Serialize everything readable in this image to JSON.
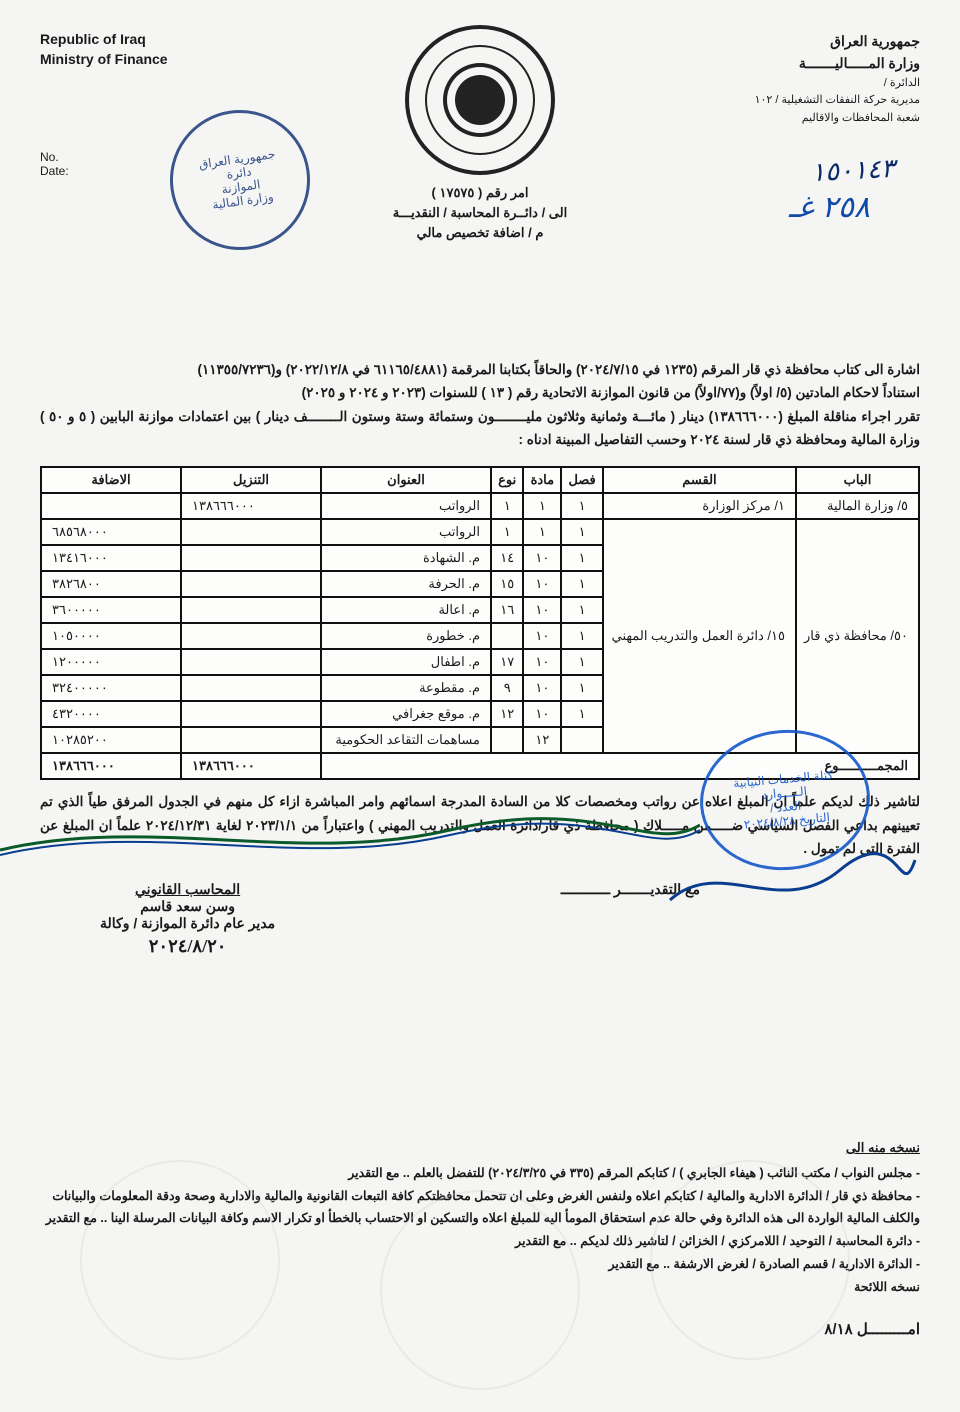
{
  "header": {
    "en_line1": "Republic of Iraq",
    "en_line2": "Ministry of Finance",
    "ar_line1": "جمهورية العراق",
    "ar_line2": "وزارة المـــــاليـــــــة",
    "ar_small1": "الدائرة /",
    "ar_small2": "مديرية حركة النفقات التشغيلية / ١٠٢",
    "ar_small3": "شعبة المحافظات والاقاليم",
    "no_label": "No.",
    "date_label": "Date:",
    "order_no": "امر رقم ( ١٧٥٧٥ )",
    "to": "الى / دائــرة المحاسبة / النقديـــة",
    "subject": "م / اضافة تخصيص مالي",
    "hand_num": "١٥٠١٤٣",
    "hand_sig": "٢٥٨ غـ"
  },
  "stamp1_text": "جمهورية العراق\nدائرة\nالموازنة\nوزارة المالية",
  "stamp2": {
    "l1": "كتلة الخدمات النيابية",
    "l2": "الـــــوارد",
    "l3": "العدد /",
    "l4": "التاريخ  ٢٠٢٤/٨/٢٨"
  },
  "body": {
    "p1": "اشارة الى كتاب محافظة ذي قار المرقم (١٢٣٥ في ٢٠٢٤/٧/١٥) والحاقاً بكتابنا المرقمة (٦١١٦٥/٤٨٨١ في ٢٠٢٢/١٢/٨) و(١١٣٥٥/٧٢٣٦)",
    "p2": "استناداً لاحكام المادتين (٥/ اولاً) و(٧٧/اولاً) من قانون الموازنة الاتحادية رقم ( ١٣ ) للسنوات (٢٠٢٣ و ٢٠٢٤ و ٢٠٢٥)",
    "p3": "تقرر اجراء مناقلة المبلغ (١٣٨٦٦٦٠٠٠) دينار ( مائـــة وثمانية وثلاثون مليــــــــون وستمائة وستة وستون الــــــــف دينار ) بين اعتمادات موازنة البابين ( ٥ و ٥٠ )  وزارة المالية ومحافظة ذي قار لسنة ٢٠٢٤ وحسب التفاصيل المبينة ادناه :"
  },
  "table": {
    "headers": [
      "الباب",
      "القسم",
      "فصل",
      "مادة",
      "نوع",
      "العنوان",
      "التنزيل",
      "الاضافة"
    ],
    "rows": [
      {
        "bab": "٥/ وزارة المالية",
        "qism": "١/ مركز الوزارة",
        "fasl": "١",
        "mada": "١",
        "naw": "١",
        "unwan": "الرواتب",
        "tanzil": "١٣٨٦٦٦٠٠٠",
        "idafa": ""
      },
      {
        "bab": "٥٠/ محافظة ذي قار",
        "qism": "١٥/ دائرة العمل والتدريب المهني",
        "fasl": "١",
        "mada": "١",
        "naw": "١",
        "unwan": "الرواتب",
        "tanzil": "",
        "idafa": "٦٨٥٦٨٠٠٠"
      },
      {
        "bab": "",
        "qism": "",
        "fasl": "١",
        "mada": "١٠",
        "naw": "١٤",
        "unwan": "م. الشهادة",
        "tanzil": "",
        "idafa": "١٣٤١٦٠٠٠"
      },
      {
        "bab": "",
        "qism": "",
        "fasl": "١",
        "mada": "١٠",
        "naw": "١٥",
        "unwan": "م. الحرفة",
        "tanzil": "",
        "idafa": "٣٨٢٦٨٠٠"
      },
      {
        "bab": "",
        "qism": "",
        "fasl": "١",
        "mada": "١٠",
        "naw": "١٦",
        "unwan": "م. اعالة",
        "tanzil": "",
        "idafa": "٣٦٠٠٠٠٠"
      },
      {
        "bab": "",
        "qism": "",
        "fasl": "١",
        "mada": "١٠",
        "naw": "",
        "unwan": "م. خطورة",
        "tanzil": "",
        "idafa": "١٠٥٠٠٠٠"
      },
      {
        "bab": "",
        "qism": "",
        "fasl": "١",
        "mada": "١٠",
        "naw": "١٧",
        "unwan": "م. اطفال",
        "tanzil": "",
        "idafa": "١٢٠٠٠٠٠"
      },
      {
        "bab": "",
        "qism": "",
        "fasl": "١",
        "mada": "١٠",
        "naw": "٩",
        "unwan": "م. مقطوعة",
        "tanzil": "",
        "idafa": "٣٢٤٠٠٠٠٠"
      },
      {
        "bab": "",
        "qism": "",
        "fasl": "١",
        "mada": "١٠",
        "naw": "١٢",
        "unwan": "م. موقع جغرافي",
        "tanzil": "",
        "idafa": "٤٣٢٠٠٠٠"
      },
      {
        "bab": "",
        "qism": "",
        "fasl": "",
        "mada": "١٢",
        "naw": "",
        "unwan": "مساهمات التقاعد الحكومية",
        "tanzil": "",
        "idafa": "١٠٢٨٥٢٠٠"
      }
    ],
    "total_label": "المجمــــــــــوع",
    "total_tanzil": "١٣٨٦٦٦٠٠٠",
    "total_idafa": "١٣٨٦٦٦٠٠٠"
  },
  "note": "لتاشير ذلك لديكم علماً ان المبلغ اعلاه عن رواتب ومخصصات كلا من السادة المدرجة اسمائهم وامر المباشرة ازاء كل منهم في الجدول المرفق طياً الذي تم تعيينهم بداعي الفصل السياسي ضـــــمن مـــــلاك ( محافظة ذي قار/دائرة العمل والتدريب المهني ) واعتباراً من ٢٠٢٣/١/١ لغاية ٢٠٢٤/١٢/٣١ علماً ان المبلغ عن الفترة التي لم تمول .",
  "greet": "مع التقديـــــــر ــــــــــــ",
  "signature": {
    "title": "المحاسب القانوني",
    "name": "وسن سعد قاسم",
    "role": "مدير عام دائرة الموازنة / وكالة",
    "date": "٢٠٢٤/٨/٢٠"
  },
  "cc": {
    "title": "نسخه منه الى",
    "items": [
      "مجلس النواب / مكتب النائب ( هيفاء الجابري ) / كتابكم المرقم (٣٣٥ في ٢٠٢٤/٣/٢٥) للتفضل بالعلم .. مع التقدير",
      "محافظة ذي قار / الدائرة الادارية والمالية / كتابكم اعلاه ولنفس الغرض  وعلى ان تتحمل محافظتكم كافة التبعات القانونية والمالية والادارية وصحة ودقة المعلومات والبيانات والكلف المالية الواردة الى هذه الدائرة وفي حالة عدم استحقاق المومأ اليه للمبلغ اعلاه  والتسكين او الاحتساب بالخطأ او تكرار الاسم  وكافة البيانات المرسلة الينا .. مع التقدير",
      "دائرة المحاسبة / التوحيد / اللامركزي / الخزائن / لتاشير ذلك لديكم .. مع التقدير",
      "الدائرة الادارية / قسم الصادرة / لغرض الارشفة .. مع التقدير",
      "نسخه اللائحة"
    ],
    "foot": "امـــــــــل ٨/١٨"
  },
  "colors": {
    "ink": "#1a1a1a",
    "blue": "#104aa8",
    "stamp": "#1a3a7a"
  }
}
